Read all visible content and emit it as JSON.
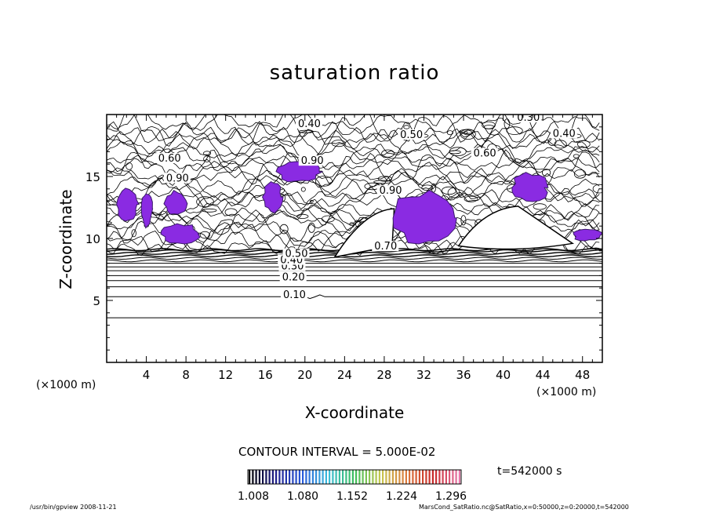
{
  "chart_data": {
    "type": "contour",
    "title": "saturation ratio",
    "xlabel": "X-coordinate",
    "ylabel": "Z-coordinate",
    "x_unit_label": "(×1000 m)",
    "y_unit_label": "(×1000 m)",
    "xlim": [
      0,
      50
    ],
    "ylim": [
      0,
      20
    ],
    "x_ticks": [
      "4",
      "8",
      "12",
      "16",
      "20",
      "24",
      "28",
      "32",
      "36",
      "40",
      "44",
      "48"
    ],
    "y_ticks": [
      "5",
      "10",
      "15"
    ],
    "contour_interval_text": "CONTOUR INTERVAL = 5.000E-02",
    "time_text": "t=542000 s",
    "contour_labels": [
      {
        "text": "0.10",
        "x": 17.8,
        "z": 5.2
      },
      {
        "text": "0.20",
        "x": 17.7,
        "z": 6.6
      },
      {
        "text": "0.30",
        "x": 17.6,
        "z": 7.5
      },
      {
        "text": "0.40",
        "x": 17.5,
        "z": 8.0
      },
      {
        "text": "0.50",
        "x": 18.0,
        "z": 8.5
      },
      {
        "text": "0.70",
        "x": 27.0,
        "z": 9.1
      },
      {
        "text": "0.60",
        "x": 5.2,
        "z": 16.2
      },
      {
        "text": "0.90",
        "x": 6.0,
        "z": 14.6
      },
      {
        "text": "0.40",
        "x": 19.3,
        "z": 19.0
      },
      {
        "text": "0.50",
        "x": 29.6,
        "z": 18.1
      },
      {
        "text": "0.30",
        "x": 41.4,
        "z": 19.5
      },
      {
        "text": "0.40",
        "x": 45.0,
        "z": 18.2
      },
      {
        "text": "0.60",
        "x": 37.0,
        "z": 16.6
      },
      {
        "text": "0.90",
        "x": 19.6,
        "z": 16.0
      },
      {
        "text": "0.90",
        "x": 27.5,
        "z": 13.6
      }
    ],
    "supersaturated_regions": [
      {
        "x": [
          17.3,
          21.5
        ],
        "z": [
          14.5,
          16.3
        ]
      },
      {
        "x": [
          15.8,
          17.7
        ],
        "z": [
          12.2,
          14.5
        ]
      },
      {
        "x": [
          1.0,
          3.2
        ],
        "z": [
          11.5,
          14.0
        ]
      },
      {
        "x": [
          3.5,
          4.6
        ],
        "z": [
          11.0,
          13.8
        ]
      },
      {
        "x": [
          5.8,
          8.2
        ],
        "z": [
          11.8,
          13.8
        ]
      },
      {
        "x": [
          5.5,
          9.5
        ],
        "z": [
          9.6,
          11.1
        ]
      },
      {
        "x": [
          29.0,
          35.0
        ],
        "z": [
          9.5,
          13.8
        ]
      },
      {
        "x": [
          40.8,
          44.5
        ],
        "z": [
          13.0,
          15.2
        ]
      },
      {
        "x": [
          47.0,
          50.0
        ],
        "z": [
          9.8,
          10.8
        ]
      }
    ],
    "colorbar": {
      "ticks": [
        "1.008",
        "1.080",
        "1.152",
        "1.224",
        "1.296"
      ],
      "colormap": "rainbow (black-blue-cyan-green-yellow-red-pink)"
    },
    "colors": {
      "fill": "#8a2be2",
      "lines": "#000000"
    }
  },
  "footer": {
    "left": "/usr/bin/gpview   2008-11-21",
    "right": "MarsCond_SatRatio.nc@SatRatio,x=0:50000,z=0:20000,t=542000"
  }
}
